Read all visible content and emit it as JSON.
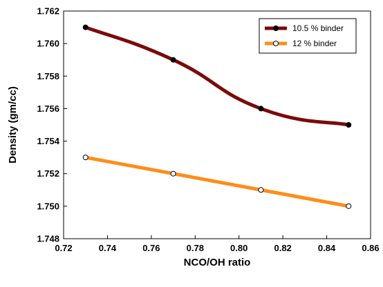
{
  "chart_data": {
    "type": "line",
    "title": "",
    "xlabel": "NCO/OH ratio",
    "ylabel": "Density (gm/cc)",
    "xlim": [
      0.72,
      0.86
    ],
    "ylim": [
      1.748,
      1.762
    ],
    "x_ticks": [
      "0.72",
      "0.74",
      "0.76",
      "0.78",
      "0.80",
      "0.82",
      "0.84",
      "0.86"
    ],
    "y_ticks": [
      "1.748",
      "1.750",
      "1.752",
      "1.754",
      "1.756",
      "1.758",
      "1.760",
      "1.762"
    ],
    "x_tick_values": [
      0.72,
      0.74,
      0.76,
      0.78,
      0.8,
      0.82,
      0.84,
      0.86
    ],
    "y_tick_values": [
      1.748,
      1.75,
      1.752,
      1.754,
      1.756,
      1.758,
      1.76,
      1.762
    ],
    "grid": false,
    "legend_position": "top-right",
    "x": [
      0.73,
      0.77,
      0.81,
      0.85
    ],
    "series": [
      {
        "name": "10.5 % binder",
        "values": [
          1.761,
          1.759,
          1.756,
          1.755
        ],
        "color": "#7b0a0a",
        "marker": "filled-circle",
        "smooth": true
      },
      {
        "name": "12 % binder",
        "values": [
          1.753,
          1.752,
          1.751,
          1.75
        ],
        "color": "#ff8c1a",
        "marker": "open-circle",
        "smooth": false
      }
    ]
  }
}
